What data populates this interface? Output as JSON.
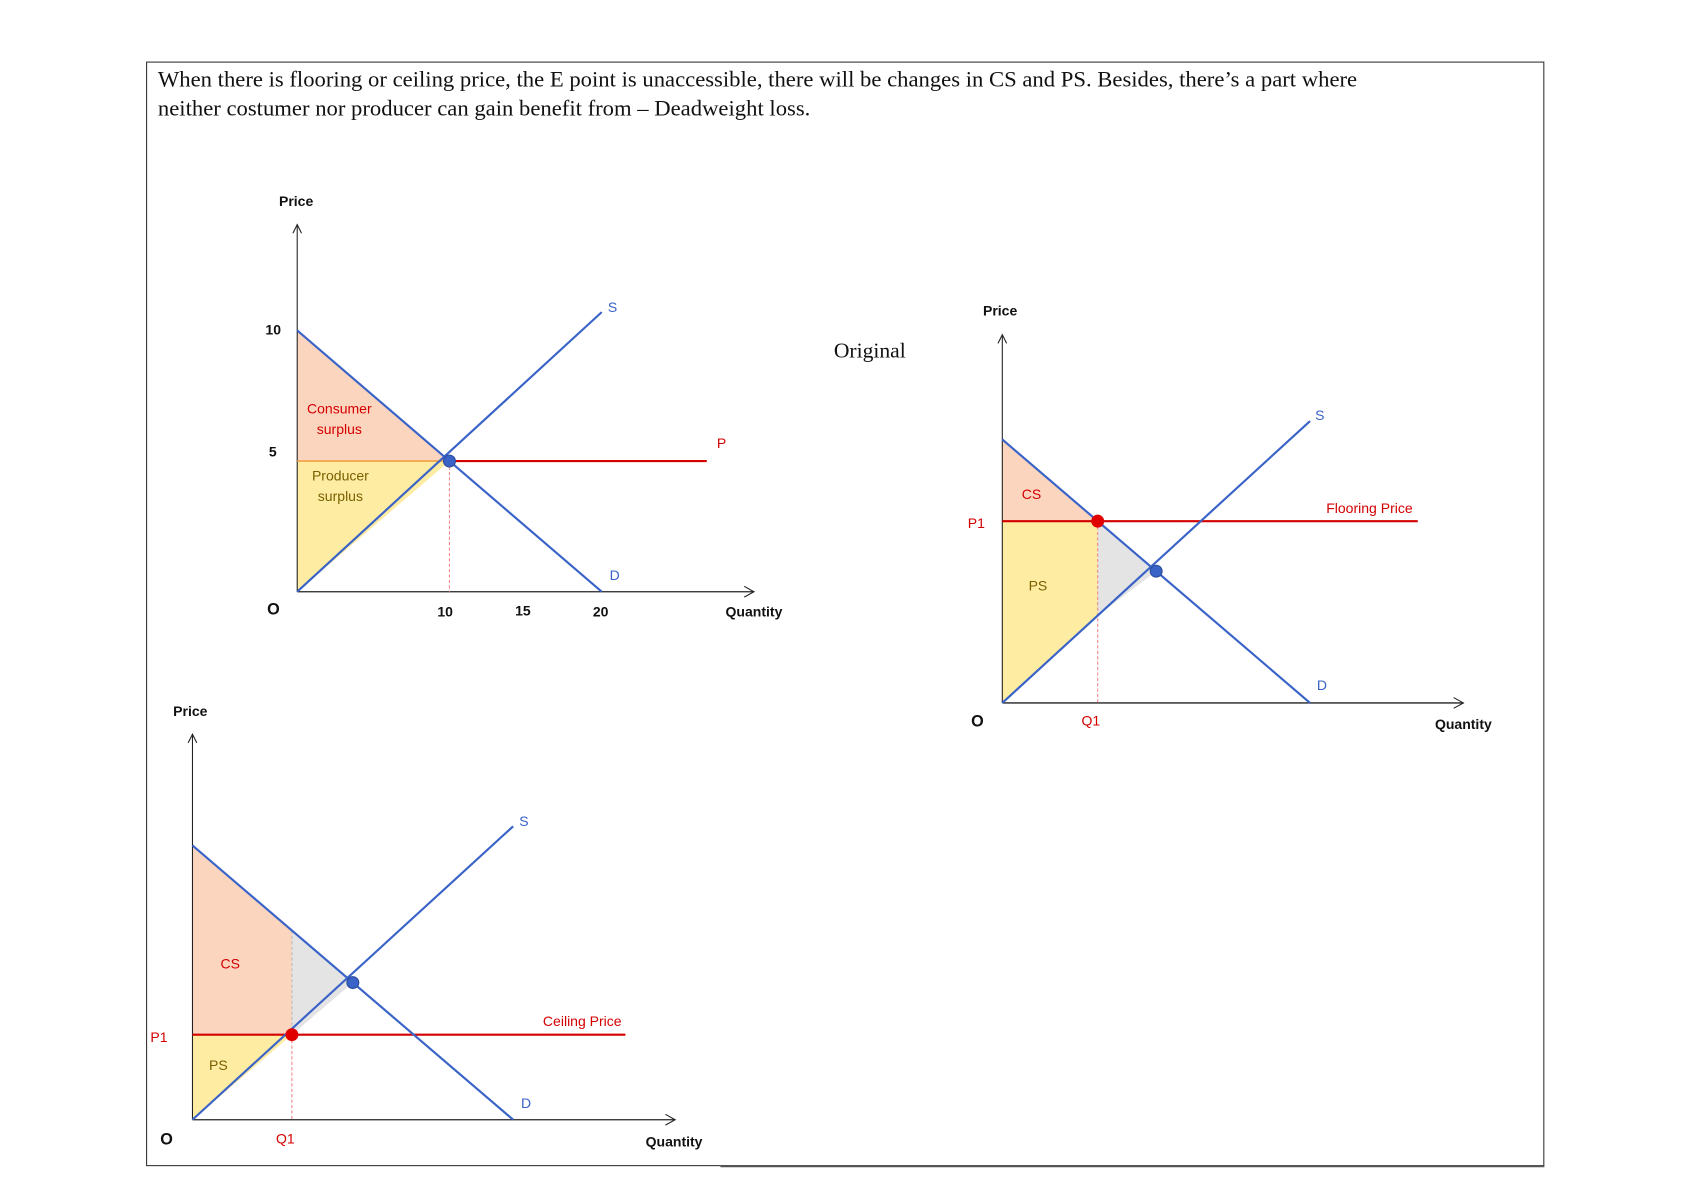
{
  "intro": {
    "line1": "When there is flooring or ceiling price, the E point is unaccessible, there will be changes in CS and PS. Besides, there’s a part where",
    "line2": "neither costumer nor producer can gain benefit from – Deadweight loss."
  },
  "original_label": "Original",
  "colors": {
    "demand_supply": "#3a63c7",
    "price_line": "#d40000",
    "cs_fill": "#fcd5bf",
    "ps_fill": "#feeca3",
    "dwl_fill": "#e4e4e4",
    "eq_point": "#3a63c7",
    "constraint_point": "#e00000"
  },
  "chart_data": [
    {
      "type": "line",
      "title": "Original",
      "xlabel": "Quantity",
      "ylabel": "Price",
      "origin_label": "O",
      "x_ticks": [
        "10",
        "15",
        "20"
      ],
      "y_ticks": [
        "10",
        "5"
      ],
      "demand": {
        "label": "D",
        "points": [
          [
            0,
            10
          ],
          [
            20,
            0
          ]
        ]
      },
      "supply": {
        "label": "S",
        "points": [
          [
            0,
            0
          ],
          [
            20,
            10.7
          ]
        ]
      },
      "price_line": {
        "label": "P",
        "price": 5,
        "x_end": 26.9
      },
      "equilibrium": [
        10,
        5
      ],
      "areas": {
        "cs": [
          "Consumer",
          "surplus"
        ],
        "ps": [
          "Producer",
          "surplus"
        ]
      }
    },
    {
      "type": "line",
      "title": "Flooring Price",
      "xlabel": "Quantity",
      "ylabel": "Price",
      "origin_label": "O",
      "demand": {
        "label": "D",
        "points": [
          [
            0,
            10
          ],
          [
            20,
            0
          ]
        ]
      },
      "supply": {
        "label": "S",
        "points": [
          [
            0,
            0
          ],
          [
            20,
            10.7
          ]
        ]
      },
      "price_line": {
        "label": "Flooring Price",
        "price": 6.9,
        "x_end": 27
      },
      "p_label": "P1",
      "q_label": "Q1",
      "q1": 6.2,
      "equilibrium": [
        10,
        5
      ],
      "areas": {
        "cs": "CS",
        "ps": "PS"
      }
    },
    {
      "type": "line",
      "title": "Ceiling Price",
      "xlabel": "Quantity",
      "ylabel": "Price",
      "origin_label": "O",
      "demand": {
        "label": "D",
        "points": [
          [
            0,
            10
          ],
          [
            20,
            0
          ]
        ]
      },
      "supply": {
        "label": "S",
        "points": [
          [
            0,
            0
          ],
          [
            20,
            10.7
          ]
        ]
      },
      "price_line": {
        "label": "Ceiling Price",
        "price": 3.1,
        "x_end": 27
      },
      "p_label": "P1",
      "q_label": "Q1",
      "q1": 6.2,
      "equilibrium": [
        10,
        5
      ],
      "areas": {
        "cs": "CS",
        "ps": "PS"
      }
    }
  ]
}
